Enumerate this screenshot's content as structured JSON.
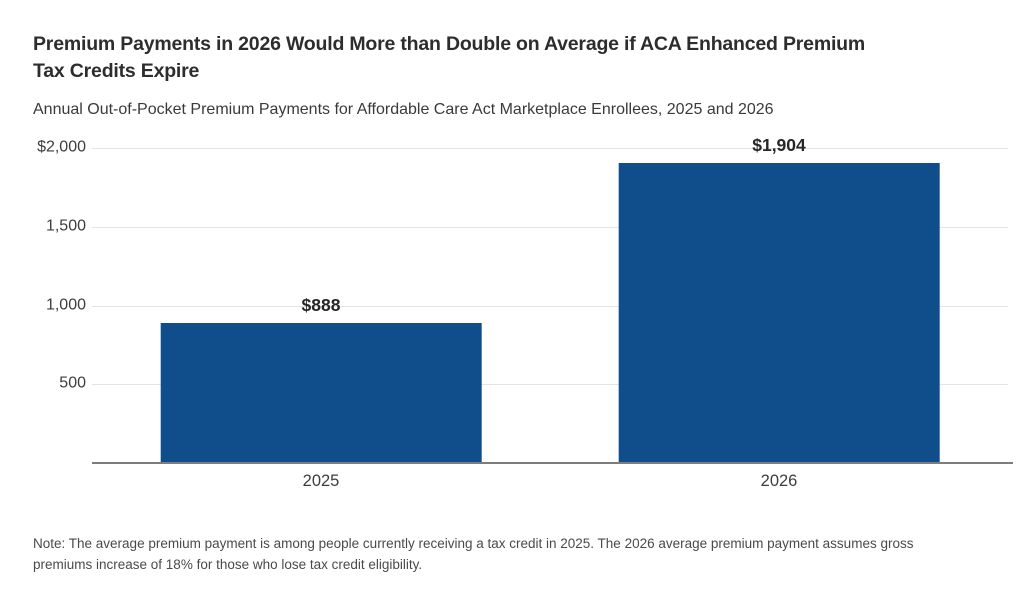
{
  "header": {
    "title_lines": [
      "Premium Payments in 2026 Would More than Double on Average if ACA Enhanced Premium",
      "Tax Credits Expire"
    ],
    "subtitle": "Annual Out-of-Pocket Premium Payments for Affordable Care Act Marketplace Enrollees, 2025 and 2026"
  },
  "chart_data": {
    "type": "bar",
    "title": "Premium Payments in 2026 Would More than Double on Average if ACA Enhanced Premium Tax Credits Expire",
    "subtitle": "Annual Out-of-Pocket Premium Payments for Affordable Care Act Marketplace Enrollees, 2025 and 2026",
    "categories": [
      "2025",
      "2026"
    ],
    "values": [
      888,
      1904
    ],
    "value_labels": [
      "$888",
      "$1,904"
    ],
    "xlabel": "",
    "ylabel": "",
    "ylim": [
      0,
      2000
    ],
    "yticks": [
      {
        "value": 2000,
        "label": "$2,000"
      },
      {
        "value": 1500,
        "label": "1,500"
      },
      {
        "value": 1000,
        "label": "1,000"
      },
      {
        "value": 500,
        "label": "500"
      }
    ],
    "grid": true,
    "legend": "none",
    "colors": {
      "bar": "#0F4E8A",
      "gridline": "#E3E3E3",
      "axis_line": "#7D7D7D"
    }
  },
  "note": {
    "lines": [
      "Note: The average premium payment is among people currently receiving a tax credit in 2025. The 2026 average premium payment assumes gross",
      "premiums increase of 18% for those who lose tax credit eligibility."
    ]
  }
}
